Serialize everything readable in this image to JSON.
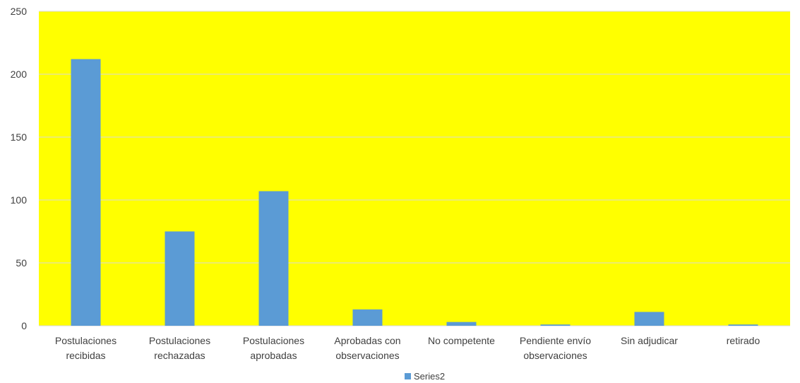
{
  "colors": {
    "plot_background": "#ffff00",
    "bar": "#5b9bd5",
    "gridline": "#d9d9d9",
    "text": "#404040"
  },
  "chart_data": {
    "type": "bar",
    "categories": [
      [
        "Postulaciones",
        "recibidas"
      ],
      [
        "Postulaciones",
        "rechazadas"
      ],
      [
        "Postulaciones",
        "aprobadas"
      ],
      [
        "Aprobadas con",
        "observaciones"
      ],
      [
        "No competente"
      ],
      [
        "Pendiente envío",
        "observaciones"
      ],
      [
        "Sin adjudicar"
      ],
      [
        "retirado"
      ]
    ],
    "series": [
      {
        "name": "Series2",
        "values": [
          212,
          75,
          107,
          13,
          3,
          1,
          11,
          1
        ]
      }
    ],
    "ylim": [
      0,
      250
    ],
    "yticks": [
      0,
      50,
      100,
      150,
      200,
      250
    ],
    "grid": true,
    "legend_position": "bottom"
  }
}
